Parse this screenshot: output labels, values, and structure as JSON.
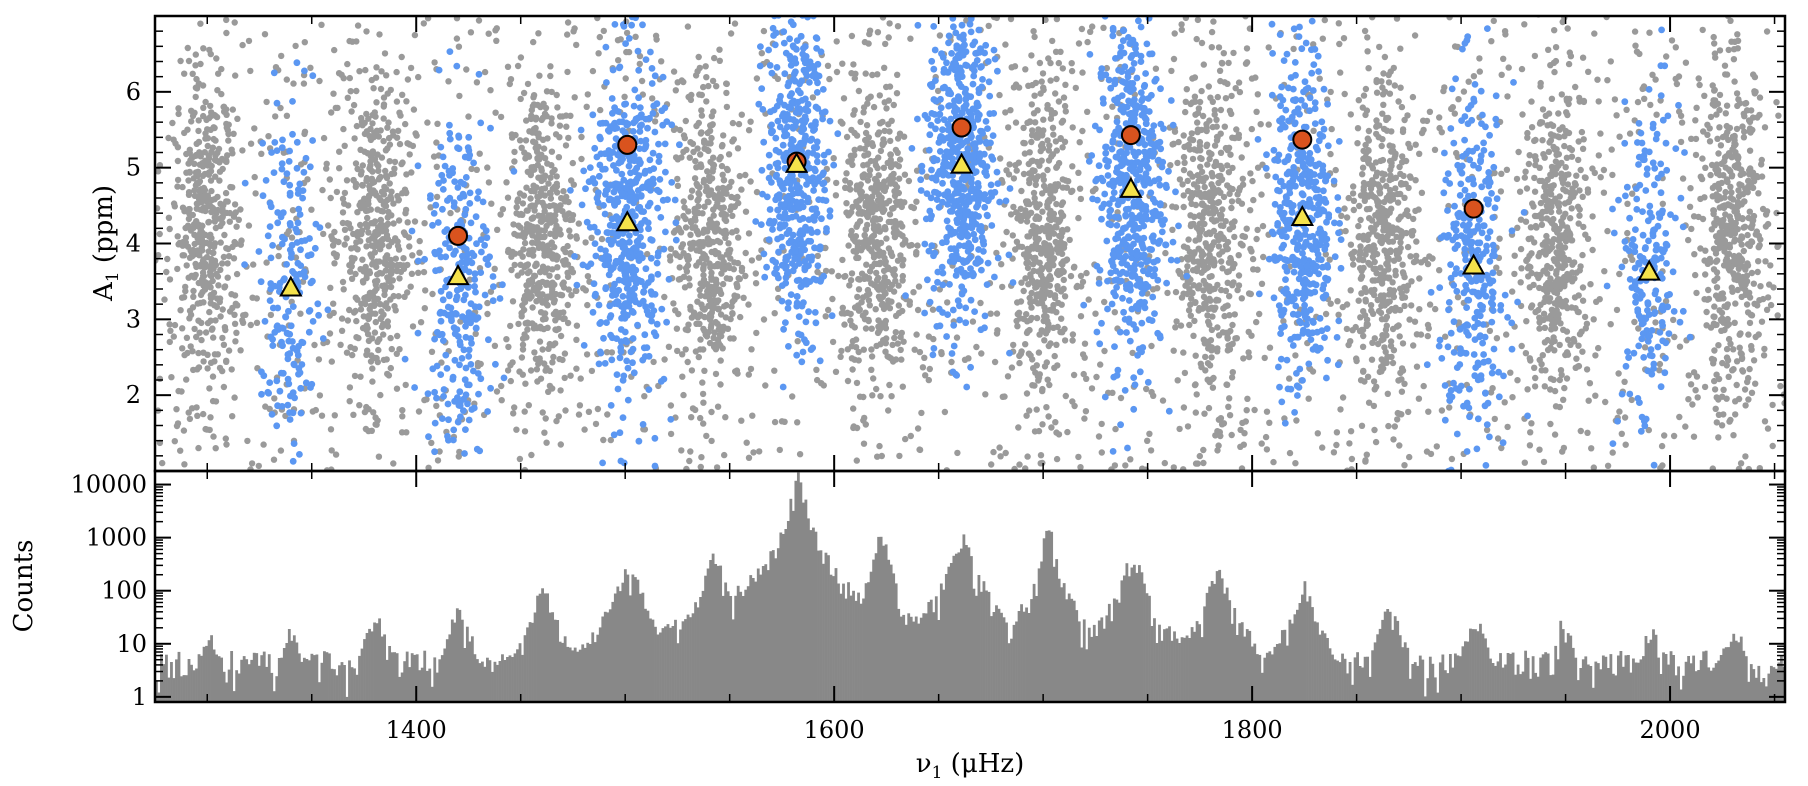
{
  "chart_data": [
    {
      "panel": "top",
      "type": "scatter",
      "xlabel": "ν1 (μHz)",
      "ylabel": "A1 (ppm)",
      "xlim": [
        1275,
        2055
      ],
      "ylim": [
        1.0,
        7.0
      ],
      "yticks": [
        2,
        3,
        4,
        5,
        6
      ],
      "xticks": [
        1400,
        1600,
        1800,
        2000
      ],
      "colors": {
        "background_points": "#9a9a9a",
        "mode_points": "#5b97f2",
        "circle_fill": "#d9531e",
        "triangle_fill": "#f5e24b"
      },
      "series": [
        {
          "name": "background",
          "marker": "grey-dot",
          "cluster_centers": [
            1300,
            1380,
            1460,
            1540,
            1620,
            1700,
            1780,
            1862,
            1946,
            2030
          ]
        },
        {
          "name": "modes",
          "marker": "blue-dot",
          "cluster_centers": [
            1340,
            1420,
            1501,
            1582,
            1661,
            1742,
            1824,
            1906,
            1990
          ],
          "cluster_widths": [
            8,
            9,
            10,
            8,
            9,
            9,
            8,
            9,
            8
          ]
        },
        {
          "name": "circles",
          "marker": "red-circle",
          "x": [
            1420,
            1501,
            1582,
            1661,
            1742,
            1824,
            1906
          ],
          "y": [
            4.1,
            5.3,
            5.08,
            5.53,
            5.43,
            5.37,
            4.46
          ]
        },
        {
          "name": "triangles",
          "marker": "yellow-triangle",
          "x": [
            1340,
            1420,
            1501,
            1582,
            1661,
            1742,
            1824,
            1906,
            1990
          ],
          "y": [
            3.42,
            3.57,
            4.28,
            5.05,
            5.04,
            4.72,
            4.35,
            3.71,
            3.63
          ]
        }
      ]
    },
    {
      "panel": "bottom",
      "type": "bar",
      "xlabel": "ν1 (μHz)",
      "ylabel": "Counts",
      "yscale": "log",
      "xlim": [
        1275,
        2055
      ],
      "ylim": [
        0.8,
        18000
      ],
      "yticks": [
        1,
        10,
        100,
        1000,
        10000
      ],
      "ytick_labels": [
        "1",
        "10",
        "100",
        "1000",
        "10000"
      ],
      "bar_color": "#888888",
      "baseline_level": 4,
      "peaks": [
        {
          "x": 1300,
          "height": 14
        },
        {
          "x": 1340,
          "height": 17
        },
        {
          "x": 1380,
          "height": 30
        },
        {
          "x": 1420,
          "height": 42
        },
        {
          "x": 1460,
          "height": 100
        },
        {
          "x": 1501,
          "height": 320
        },
        {
          "x": 1542,
          "height": 430
        },
        {
          "x": 1582,
          "height": 17000
        },
        {
          "x": 1622,
          "height": 1400
        },
        {
          "x": 1661,
          "height": 1000
        },
        {
          "x": 1702,
          "height": 1700
        },
        {
          "x": 1742,
          "height": 440
        },
        {
          "x": 1783,
          "height": 250
        },
        {
          "x": 1824,
          "height": 120
        },
        {
          "x": 1865,
          "height": 45
        },
        {
          "x": 1906,
          "height": 30
        },
        {
          "x": 1948,
          "height": 25
        },
        {
          "x": 1990,
          "height": 17
        },
        {
          "x": 2030,
          "height": 20
        }
      ]
    }
  ],
  "labels": {
    "top_ylabel_main": "A",
    "top_ylabel_sub": "1",
    "top_ylabel_rest": " (ppm)",
    "bottom_ylabel": "Counts",
    "xlabel_nu": "ν",
    "xlabel_sub": "1",
    "xlabel_rest": " (μHz)"
  }
}
